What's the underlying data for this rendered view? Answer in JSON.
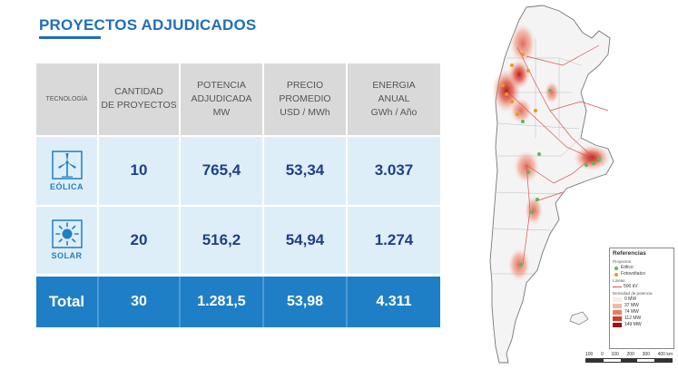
{
  "title": "PROYECTOS ADJUDICADOS",
  "table": {
    "headers": {
      "tecnologia": "TECNOLOGÍA",
      "cantidad": [
        "CANTIDAD",
        "DE PROYECTOS"
      ],
      "potencia": [
        "POTENCIA",
        "ADJUDICADA",
        "MW"
      ],
      "precio": [
        "PRECIO",
        "PROMEDIO",
        "USD / MWh"
      ],
      "energia": [
        "ENERGIA",
        "ANUAL",
        "GWh / Año"
      ]
    },
    "rows": [
      {
        "tecnologia": "EÓLICA",
        "icon": "wind-turbine-icon",
        "cantidad": "10",
        "potencia": "765,4",
        "precio": "53,34",
        "energia": "3.037"
      },
      {
        "tecnologia": "SOLAR",
        "icon": "sun-icon",
        "cantidad": "20",
        "potencia": "516,2",
        "precio": "54,94",
        "energia": "1.274"
      }
    ],
    "total": {
      "label": "Total",
      "cantidad": "30",
      "potencia": "1.281,5",
      "precio": "53,98",
      "energia": "4.311"
    }
  },
  "colors": {
    "accent": "#1f6fb8",
    "header_bg": "#d9d9d9",
    "row_bg": "#deeef8",
    "total_bg": "#1f7fc6",
    "value_text": "#1e3f8a"
  },
  "legend": {
    "title": "Referencias",
    "proyectos_label": "Proyectos",
    "eolico": "Eólico",
    "fotovoltaico": "Fotovoltaico",
    "lineas_label": "Líneas",
    "linea_500": "500 kV",
    "densidad_label": "Densidad de potencia",
    "densidad": [
      "0 MW",
      "37 MW",
      "74 MW",
      "112 MW",
      "149 MW"
    ]
  },
  "scale": [
    "100",
    "0",
    "100",
    "200",
    "300",
    "400 km"
  ]
}
